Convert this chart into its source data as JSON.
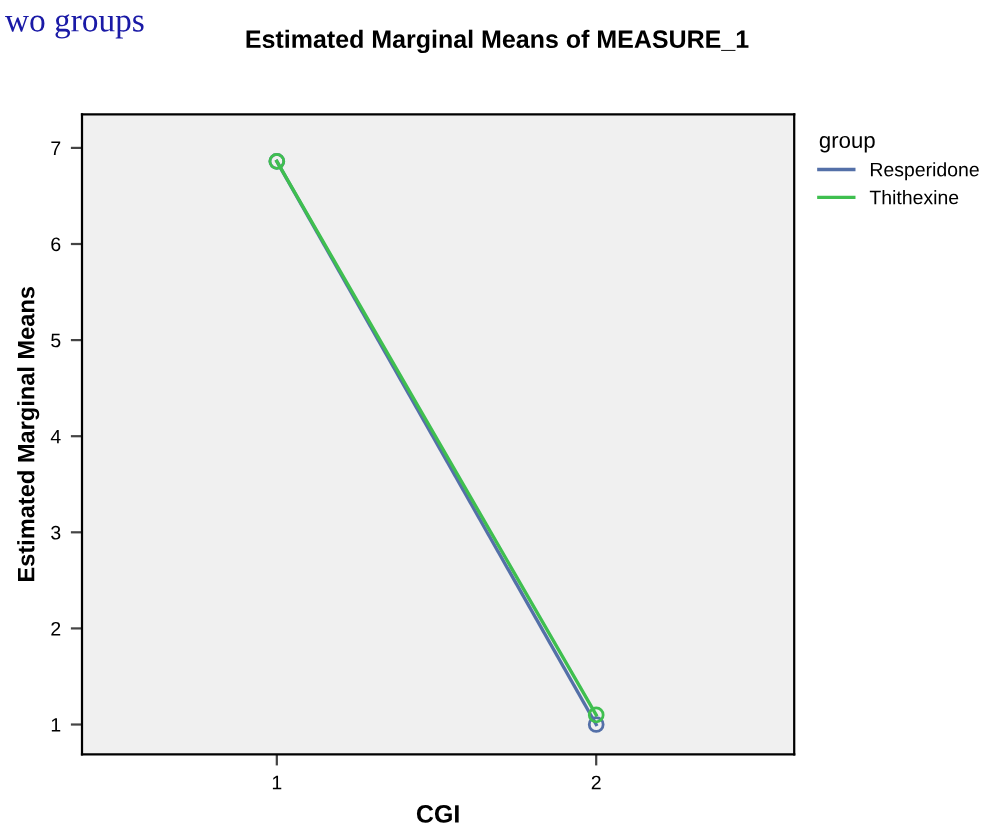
{
  "chart_data": {
    "type": "line",
    "title": "Estimated Marginal Means of MEASURE_1",
    "xlabel": "CGI",
    "ylabel": "Estimated Marginal Means",
    "legend_title": "group",
    "annotations": [
      "wo groups"
    ],
    "x": [
      1,
      2
    ],
    "series": [
      {
        "name": "Resperidone",
        "color": "#5470a8",
        "values": [
          6.86,
          1.0
        ]
      },
      {
        "name": "Thithexine",
        "color": "#3fbf4f",
        "values": [
          6.86,
          1.1
        ]
      }
    ],
    "xlim": [
      0.39,
      2.62
    ],
    "xticks": [
      1,
      2
    ],
    "ylim": [
      0.69,
      7.35
    ],
    "yticks": [
      1,
      2,
      3,
      4,
      5,
      6,
      7
    ],
    "grid": false,
    "legend": "top right",
    "marker": "circle",
    "line_style": "solid"
  }
}
